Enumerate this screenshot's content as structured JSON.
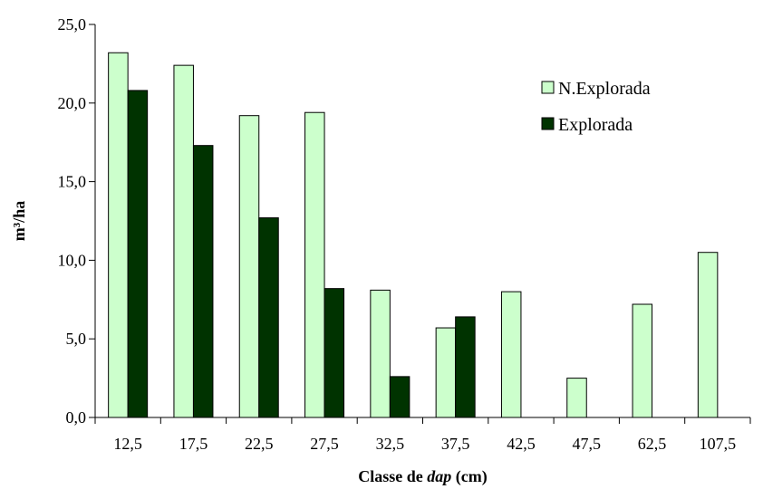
{
  "chart_data": {
    "type": "bar",
    "categories": [
      "12,5",
      "17,5",
      "22,5",
      "27,5",
      "32,5",
      "37,5",
      "42,5",
      "47,5",
      "62,5",
      "107,5"
    ],
    "series": [
      {
        "name": "N.Explorada",
        "color": "#ccffcc",
        "values": [
          23.2,
          22.4,
          19.2,
          19.4,
          8.1,
          5.7,
          8.0,
          2.5,
          7.2,
          10.5
        ]
      },
      {
        "name": "Explorada",
        "color": "#003300",
        "values": [
          20.8,
          17.3,
          12.7,
          8.2,
          2.6,
          6.4,
          null,
          null,
          null,
          null
        ]
      }
    ],
    "xlabel_prefix": "Classe de ",
    "xlabel_italic": "dap",
    "xlabel_suffix": " (cm)",
    "ylabel": "m³/ha",
    "yticks": [
      "0,0",
      "5,0",
      "10,0",
      "15,0",
      "20,0",
      "25,0"
    ],
    "ylim": [
      0,
      25
    ],
    "grid": false,
    "legend_position": "top-right"
  }
}
